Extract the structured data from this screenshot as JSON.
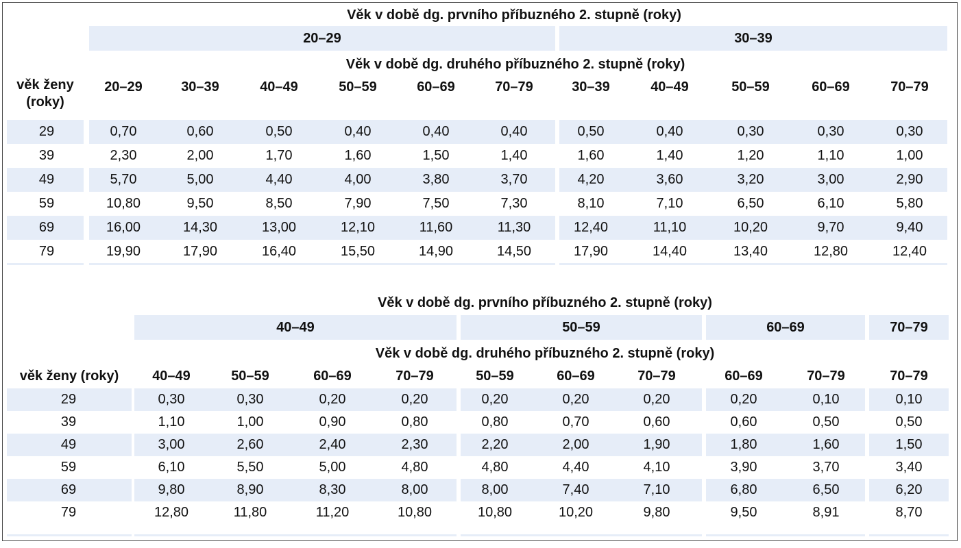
{
  "tables": [
    {
      "first_label": "Věk v době dg. prvního příbuzného 2. stupně (roky)",
      "second_label": "Věk v době dg. druhého příbuzného 2. stupně (roky)",
      "age_header": "věk ženy (roky)",
      "groups": [
        {
          "label": "20–29",
          "cols": [
            "20–29",
            "30–39",
            "40–49",
            "50–59",
            "60–69",
            "70–79"
          ]
        },
        {
          "label": "30–39",
          "cols": [
            "30–39",
            "40–49",
            "50–59",
            "60–69",
            "70–79"
          ]
        }
      ],
      "rows": [
        {
          "age": "29",
          "values": [
            "0,70",
            "0,60",
            "0,50",
            "0,40",
            "0,40",
            "0,40",
            "0,50",
            "0,40",
            "0,30",
            "0,30",
            "0,30"
          ]
        },
        {
          "age": "39",
          "values": [
            "2,30",
            "2,00",
            "1,70",
            "1,60",
            "1,50",
            "1,40",
            "1,60",
            "1,40",
            "1,20",
            "1,10",
            "1,00"
          ]
        },
        {
          "age": "49",
          "values": [
            "5,70",
            "5,00",
            "4,40",
            "4,00",
            "3,80",
            "3,70",
            "4,20",
            "3,60",
            "3,20",
            "3,00",
            "2,90"
          ]
        },
        {
          "age": "59",
          "values": [
            "10,80",
            "9,50",
            "8,50",
            "7,90",
            "7,50",
            "7,30",
            "8,10",
            "7,10",
            "6,50",
            "6,10",
            "5,80"
          ]
        },
        {
          "age": "69",
          "values": [
            "16,00",
            "14,30",
            "13,00",
            "12,10",
            "11,60",
            "11,30",
            "12,40",
            "11,10",
            "10,20",
            "9,70",
            "9,40"
          ]
        },
        {
          "age": "79",
          "values": [
            "19,90",
            "17,90",
            "16,40",
            "15,50",
            "14,90",
            "14,50",
            "17,90",
            "14,40",
            "13,40",
            "12,80",
            "12,40"
          ]
        }
      ]
    },
    {
      "first_label": "Věk v době dg. prvního příbuzného 2. stupně (roky)",
      "second_label": "Věk v době dg. druhého příbuzného 2. stupně (roky)",
      "age_header": "věk ženy (roky)",
      "groups": [
        {
          "label": "40–49",
          "cols": [
            "40–49",
            "50–59",
            "60–69",
            "70–79"
          ]
        },
        {
          "label": "50–59",
          "cols": [
            "50–59",
            "60–69",
            "70–79"
          ]
        },
        {
          "label": "60–69",
          "cols": [
            "60–69",
            "70–79"
          ]
        },
        {
          "label": "70–79",
          "cols": [
            "70–79"
          ]
        }
      ],
      "rows": [
        {
          "age": "29",
          "values": [
            "0,30",
            "0,30",
            "0,20",
            "0,20",
            "0,20",
            "0,20",
            "0,20",
            "0,20",
            "0,10",
            "0,10"
          ]
        },
        {
          "age": "39",
          "values": [
            "1,10",
            "1,00",
            "0,90",
            "0,80",
            "0,80",
            "0,70",
            "0,60",
            "0,60",
            "0,50",
            "0,50"
          ]
        },
        {
          "age": "49",
          "values": [
            "3,00",
            "2,60",
            "2,40",
            "2,30",
            "2,20",
            "2,00",
            "1,90",
            "1,80",
            "1,60",
            "1,50"
          ]
        },
        {
          "age": "59",
          "values": [
            "6,10",
            "5,50",
            "5,00",
            "4,80",
            "4,80",
            "4,40",
            "4,10",
            "3,90",
            "3,70",
            "3,40"
          ]
        },
        {
          "age": "69",
          "values": [
            "9,80",
            "8,90",
            "8,30",
            "8,00",
            "8,00",
            "7,40",
            "7,10",
            "6,80",
            "6,50",
            "6,20"
          ]
        },
        {
          "age": "79",
          "values": [
            "12,80",
            "11,80",
            "11,20",
            "10,80",
            "10,80",
            "10,20",
            "9,80",
            "9,50",
            "8,91",
            "8,70"
          ]
        }
      ]
    }
  ]
}
